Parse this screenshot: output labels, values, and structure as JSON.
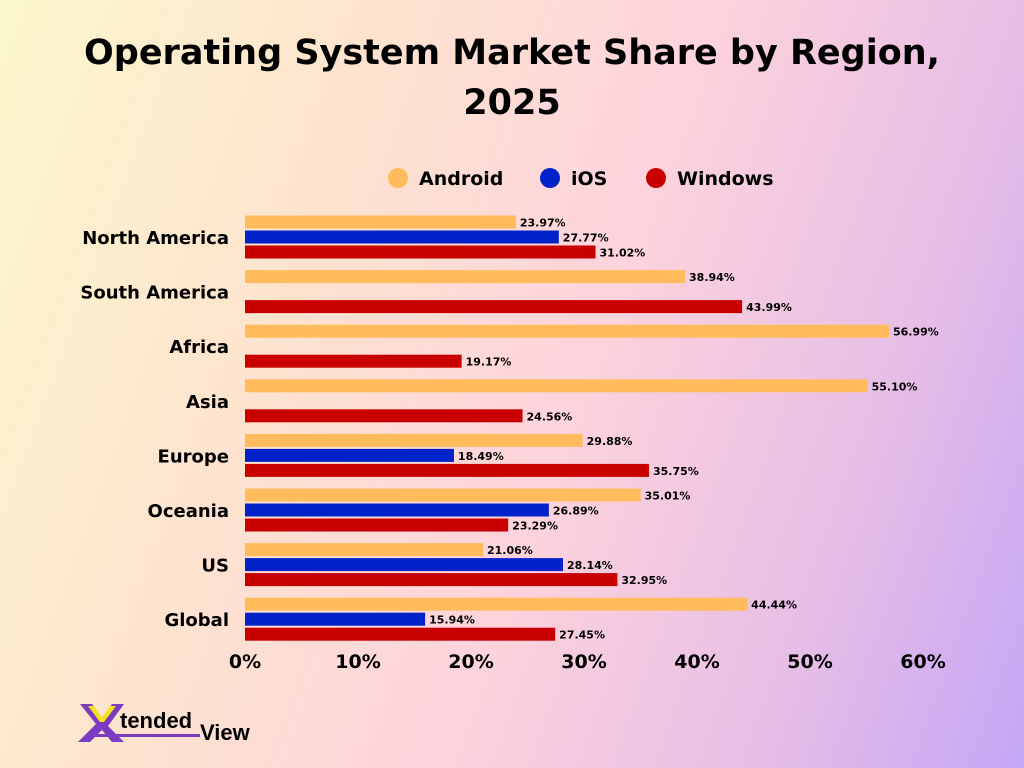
{
  "chart_data": {
    "type": "bar",
    "orientation": "horizontal",
    "title_lines": [
      "Operating System Market Share by Region,",
      "2025"
    ],
    "categories": [
      "North America",
      "South America",
      "Africa",
      "Asia",
      "Europe",
      "Oceania",
      "US",
      "Global"
    ],
    "series": [
      {
        "name": "Android",
        "color": "#ffbb5c",
        "values": [
          23.97,
          38.94,
          56.99,
          55.1,
          29.88,
          35.01,
          21.06,
          44.44
        ]
      },
      {
        "name": "iOS",
        "color": "#0022c8",
        "values": [
          27.77,
          null,
          null,
          null,
          18.49,
          26.89,
          28.14,
          15.94
        ]
      },
      {
        "name": "Windows",
        "color": "#c80000",
        "values": [
          31.02,
          43.99,
          19.17,
          24.56,
          35.75,
          23.29,
          32.95,
          27.45
        ]
      }
    ],
    "data_labels": {
      "Android": [
        "23.97%",
        "38.94%",
        "56.99%",
        "55.10%",
        "29.88%",
        "35.01%",
        "21.06%",
        "44.44%"
      ],
      "iOS": [
        "27.77%",
        null,
        null,
        null,
        "18.49%",
        "26.89%",
        "28.14%",
        "15.94%"
      ],
      "Windows": [
        "31.02%",
        "43.99%",
        "19.17%",
        "24.56%",
        "35.75%",
        "23.29%",
        "32.95%",
        "27.45%"
      ]
    },
    "xlim": [
      0,
      60
    ],
    "xticks": [
      0,
      10,
      20,
      30,
      40,
      50,
      60
    ],
    "xtick_labels": [
      "0%",
      "10%",
      "20%",
      "30%",
      "40%",
      "50%",
      "60%"
    ],
    "grid": false,
    "legend_position": "top"
  },
  "logo": {
    "text": "XtendedView",
    "part1": "tended",
    "part2": "View"
  }
}
